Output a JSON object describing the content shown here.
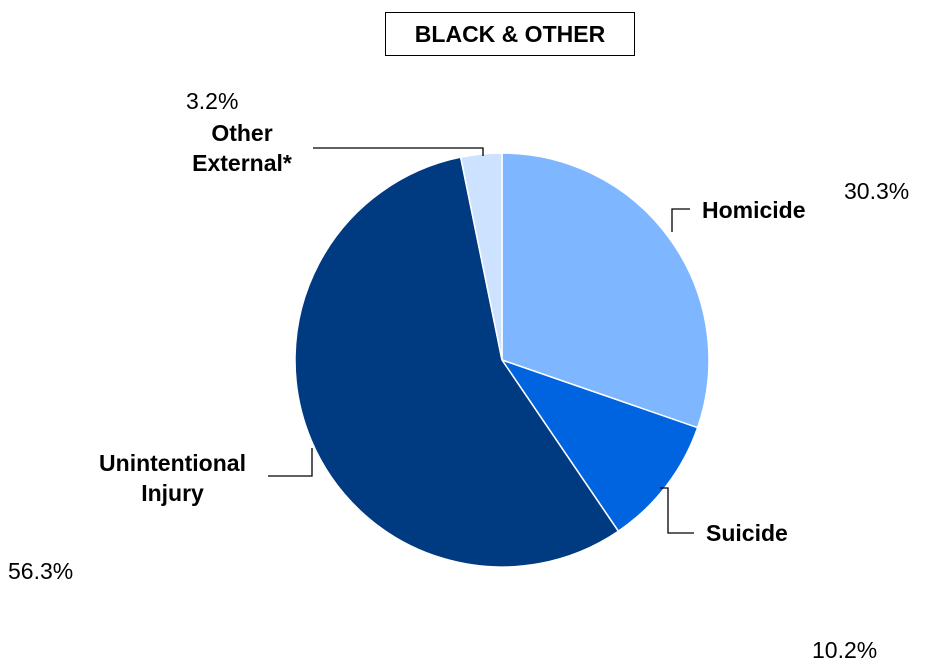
{
  "chart_data": {
    "type": "pie",
    "title": "BLACK & OTHER",
    "slices": [
      {
        "name": "Homicide",
        "value": 30.3,
        "percent_label": "30.3%",
        "color": "#7EB6FF"
      },
      {
        "name": "Suicide",
        "value": 10.2,
        "percent_label": "10.2%",
        "color": "#0064E0"
      },
      {
        "name": "Unintentional Injury",
        "name_lines": [
          "Unintentional",
          "Injury"
        ],
        "value": 56.3,
        "percent_label": "56.3%",
        "color": "#003A80"
      },
      {
        "name": "Other External*",
        "name_lines": [
          "Other",
          "External*"
        ],
        "value": 3.2,
        "percent_label": "3.2%",
        "color": "#CCE2FF"
      }
    ],
    "start_angle": "12 o'clock",
    "direction": "clockwise"
  }
}
